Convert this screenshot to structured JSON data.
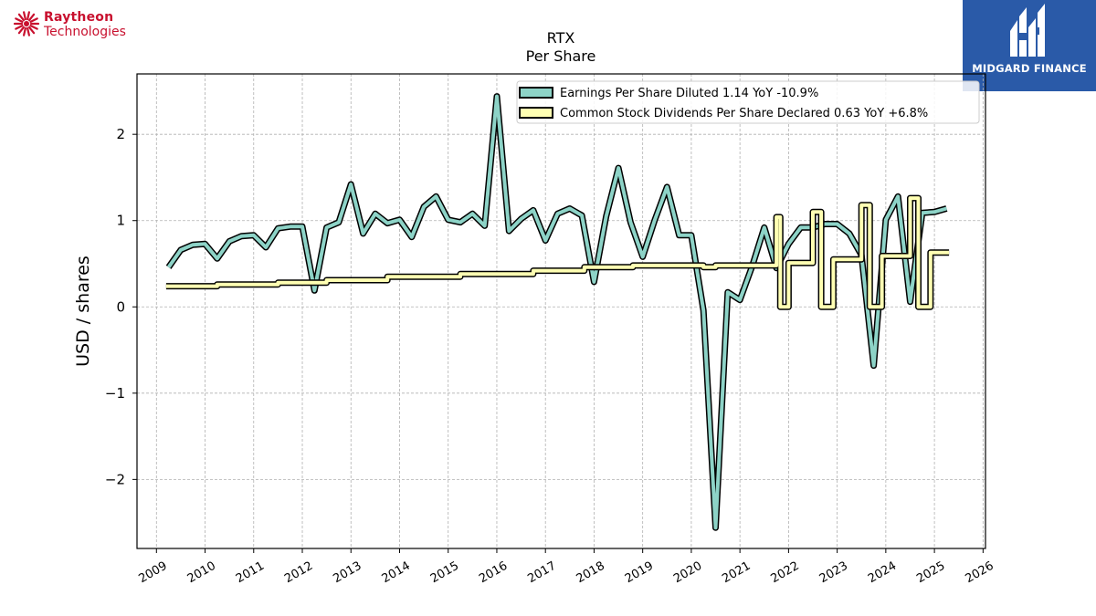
{
  "branding": {
    "left_logo_line1": "Raytheon",
    "left_logo_line2": "Technologies",
    "left_logo_color": "#c8102e",
    "right_logo_text": "MIDGARD FINANCE",
    "right_logo_bg": "#2a5aa8"
  },
  "chart_data": {
    "type": "line",
    "title": "RTX",
    "subtitle": "Per  Share",
    "ylabel": "USD / shares",
    "xlabel": "",
    "xlim": [
      2008.6,
      2026.05
    ],
    "ylim": [
      -2.8,
      2.7
    ],
    "x_ticks": [
      2009,
      2010,
      2011,
      2012,
      2013,
      2014,
      2015,
      2016,
      2017,
      2018,
      2019,
      2020,
      2021,
      2022,
      2023,
      2024,
      2025,
      2026
    ],
    "y_ticks": [
      2,
      1,
      0,
      -1,
      -2
    ],
    "y_tick_labels": [
      "2",
      "1",
      "0",
      "−1",
      "−2"
    ],
    "grid": true,
    "legend_position": "top-right",
    "series": [
      {
        "name": "Earnings Per Share Diluted  1.14 YoY -10.9%",
        "color": "#8dd3c7",
        "x": [
          2009.25,
          2009.5,
          2009.75,
          2010.0,
          2010.25,
          2010.5,
          2010.75,
          2011.0,
          2011.25,
          2011.5,
          2011.75,
          2012.0,
          2012.25,
          2012.5,
          2012.75,
          2013.0,
          2013.25,
          2013.5,
          2013.75,
          2014.0,
          2014.25,
          2014.5,
          2014.75,
          2015.0,
          2015.25,
          2015.5,
          2015.75,
          2016.0,
          2016.25,
          2016.5,
          2016.75,
          2017.0,
          2017.25,
          2017.5,
          2017.75,
          2018.0,
          2018.25,
          2018.5,
          2018.75,
          2019.0,
          2019.25,
          2019.5,
          2019.75,
          2020.0,
          2020.25,
          2020.5,
          2020.75,
          2021.0,
          2021.25,
          2021.5,
          2021.75,
          2022.0,
          2022.25,
          2022.5,
          2022.75,
          2023.0,
          2023.25,
          2023.5,
          2023.75,
          2024.0,
          2024.25,
          2024.5,
          2024.75,
          2025.0,
          2025.25
        ],
        "y": [
          0.46,
          0.66,
          0.72,
          0.73,
          0.56,
          0.76,
          0.82,
          0.83,
          0.69,
          0.91,
          0.93,
          0.93,
          0.19,
          0.92,
          0.98,
          1.42,
          0.85,
          1.08,
          0.97,
          1.01,
          0.81,
          1.16,
          1.28,
          1.01,
          0.98,
          1.08,
          0.94,
          2.44,
          0.88,
          1.02,
          1.12,
          0.77,
          1.08,
          1.14,
          1.06,
          0.29,
          1.05,
          1.61,
          0.98,
          0.58,
          1.01,
          1.39,
          0.83,
          0.83,
          -0.04,
          -2.56,
          0.17,
          0.08,
          0.47,
          0.92,
          0.45,
          0.73,
          0.92,
          0.92,
          0.96,
          0.96,
          0.85,
          0.6,
          -0.68,
          1.01,
          1.28,
          0.06,
          1.09,
          1.1,
          1.14
        ]
      },
      {
        "name": "Common Stock Dividends Per Share Declared  0.63 YoY +6.8%",
        "color": "#ffffb3",
        "steps": [
          [
            2009.2,
            0.24
          ],
          [
            2010.25,
            0.26
          ],
          [
            2011.5,
            0.28
          ],
          [
            2012.5,
            0.31
          ],
          [
            2013.75,
            0.35
          ],
          [
            2015.25,
            0.38
          ],
          [
            2016.75,
            0.42
          ],
          [
            2017.8,
            0.46
          ],
          [
            2018.8,
            0.48
          ],
          [
            2020.25,
            0.46
          ],
          [
            2020.5,
            0.48
          ],
          [
            2021.5,
            0.48
          ],
          [
            2021.75,
            1.04
          ],
          [
            2021.83,
            0.0
          ],
          [
            2022.0,
            0.51
          ],
          [
            2022.25,
            0.51
          ],
          [
            2022.5,
            1.1
          ],
          [
            2022.67,
            0.0
          ],
          [
            2022.92,
            0.55
          ],
          [
            2023.25,
            0.55
          ],
          [
            2023.5,
            1.18
          ],
          [
            2023.67,
            0.0
          ],
          [
            2023.92,
            0.59
          ],
          [
            2024.25,
            0.59
          ],
          [
            2024.5,
            1.26
          ],
          [
            2024.67,
            0.0
          ],
          [
            2024.92,
            0.63
          ],
          [
            2025.3,
            0.63
          ]
        ],
        "x_end": 2025.3
      }
    ]
  }
}
